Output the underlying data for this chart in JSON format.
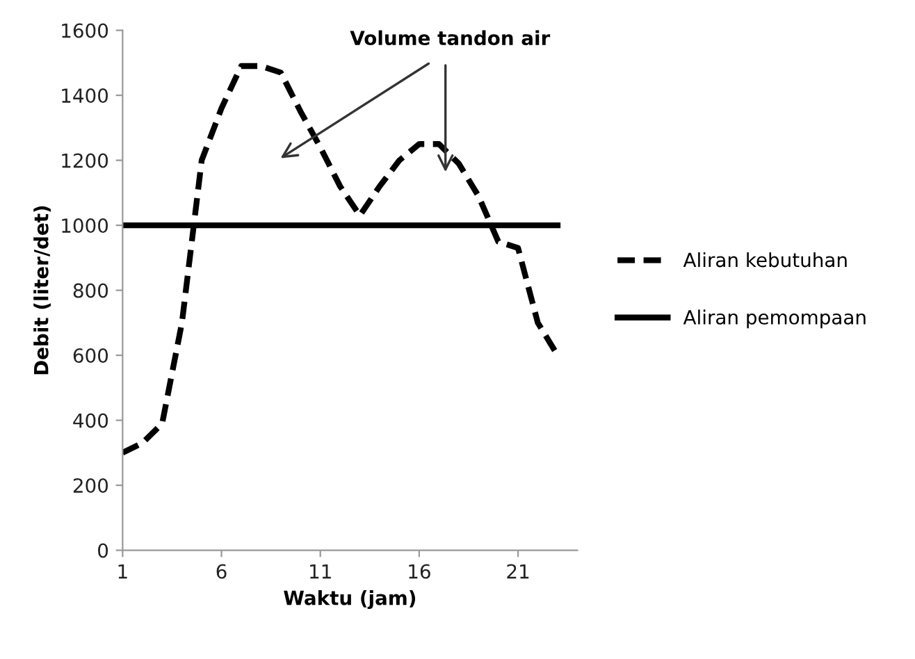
{
  "chart_data": {
    "type": "line",
    "xlabel": "Waktu (jam)",
    "ylabel": "Debit (liter/det)",
    "x": [
      1,
      2,
      3,
      4,
      5,
      6,
      7,
      8,
      9,
      10,
      11,
      12,
      13,
      14,
      15,
      16,
      17,
      18,
      19,
      20,
      21,
      22,
      23
    ],
    "series": [
      {
        "name": "Aliran kebutuhan",
        "color": "#000000",
        "line_style": "dashed",
        "values": [
          300,
          330,
          390,
          700,
          1200,
          1360,
          1490,
          1490,
          1470,
          1350,
          1240,
          1120,
          1030,
          1120,
          1200,
          1250,
          1250,
          1190,
          1090,
          950,
          930,
          700,
          600
        ]
      },
      {
        "name": "Aliran pemompaan",
        "color": "#000000",
        "line_style": "solid",
        "x": [
          1,
          23
        ],
        "values": [
          1000,
          1000
        ]
      }
    ],
    "xlim": [
      1,
      24
    ],
    "xticks": [
      1,
      6,
      11,
      16,
      21
    ],
    "ylim": [
      0,
      1600
    ],
    "yticks": [
      0,
      200,
      400,
      600,
      800,
      1000,
      1200,
      1400,
      1600
    ],
    "grid": false,
    "legend": "right",
    "marker": "none",
    "annotations": [
      "Volume tandon air"
    ]
  }
}
